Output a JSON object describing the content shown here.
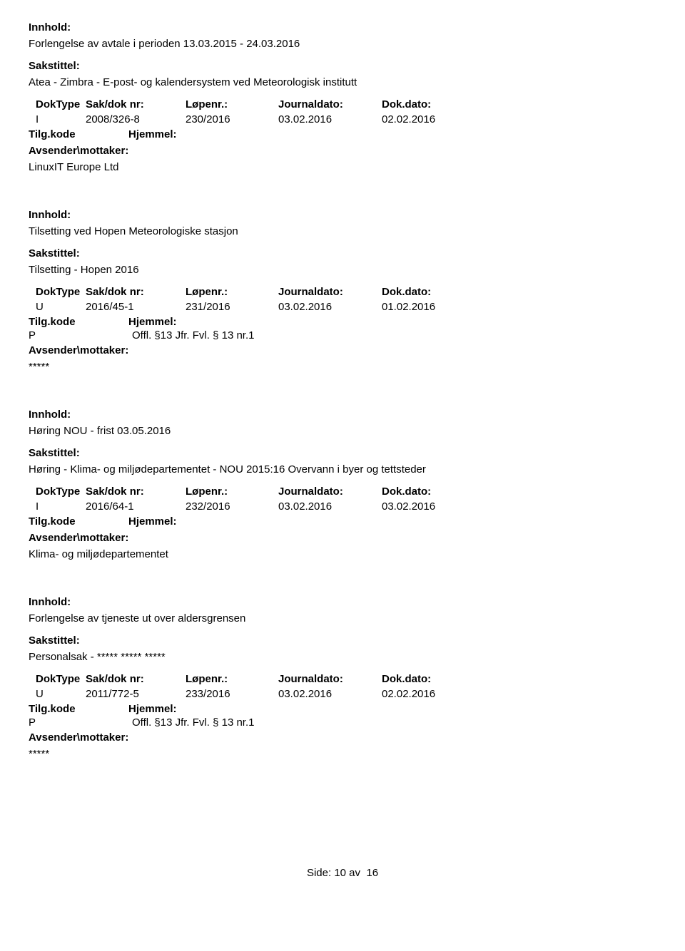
{
  "labels": {
    "innhold": "Innhold:",
    "sakstittel": "Sakstittel:",
    "doktype": "DokType",
    "saknr": "Sak/dok nr:",
    "lopenr": "Løpenr.:",
    "journaldato": "Journaldato:",
    "dokdato": "Dok.dato:",
    "tilgkode": "Tilg.kode",
    "hjemmel": "Hjemmel:",
    "avsender": "Avsender\\mottaker:",
    "side": "Side:",
    "av": "av"
  },
  "entries": [
    {
      "innhold": "Forlengelse av avtale i perioden 13.03.2015 - 24.03.2016",
      "sakstittel": "Atea - Zimbra - E-post- og kalendersystem ved Meteorologisk institutt",
      "doktype": "I",
      "saknr": "2008/326-8",
      "lopenr": "230/2016",
      "journaldato": "03.02.2016",
      "dokdato": "02.02.2016",
      "tilgkode": "",
      "hjemmel": "",
      "avsender": "LinuxIT Europe Ltd"
    },
    {
      "innhold": "Tilsetting ved Hopen Meteorologiske stasjon",
      "sakstittel": "Tilsetting - Hopen 2016",
      "doktype": "U",
      "saknr": "2016/45-1",
      "lopenr": "231/2016",
      "journaldato": "03.02.2016",
      "dokdato": "01.02.2016",
      "tilgkode": "P",
      "hjemmel": "Offl. §13 Jfr. Fvl. § 13 nr.1",
      "avsender": "*****"
    },
    {
      "innhold": "Høring NOU - frist 03.05.2016",
      "sakstittel": "Høring - Klima- og miljødepartementet - NOU 2015:16 Overvann i byer og tettsteder",
      "doktype": "I",
      "saknr": "2016/64-1",
      "lopenr": "232/2016",
      "journaldato": "03.02.2016",
      "dokdato": "03.02.2016",
      "tilgkode": "",
      "hjemmel": "",
      "avsender": "Klima- og miljødepartementet"
    },
    {
      "innhold": "Forlengelse av tjeneste ut over aldersgrensen",
      "sakstittel": "Personalsak - ***** ***** *****",
      "doktype": "U",
      "saknr": "2011/772-5",
      "lopenr": "233/2016",
      "journaldato": "03.02.2016",
      "dokdato": "02.02.2016",
      "tilgkode": "P",
      "hjemmel": "Offl. §13 Jfr. Fvl. § 13 nr.1",
      "avsender": "*****"
    }
  ],
  "page": {
    "current": "10",
    "total": "16"
  }
}
